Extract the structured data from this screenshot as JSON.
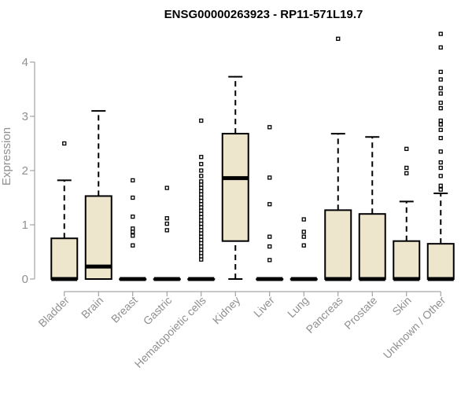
{
  "chart_data": {
    "type": "boxplot",
    "title": "ENSG00000263923 - RP11-571L19.7",
    "xlabel": "",
    "ylabel": "Expression",
    "ylim": [
      0,
      4.6
    ],
    "yticks": [
      0,
      1,
      2,
      3,
      4
    ],
    "grid": false,
    "legend": "none",
    "colors": {
      "box_fill": "#ede6cc",
      "stroke": "#000000",
      "axis": "#909090",
      "text": "#909090",
      "title": "#000000"
    },
    "categories": [
      "Bladder",
      "Brain",
      "Breast",
      "Gastric",
      "Hematopoietic cells",
      "Kidney",
      "Liver",
      "Lung",
      "Pancreas",
      "Prostate",
      "Skin",
      "Unknown / Other"
    ],
    "boxes": [
      {
        "category": "Bladder",
        "min": 0,
        "q1": 0,
        "median": 0,
        "q3": 0.75,
        "max": 1.82,
        "outliers": [
          2.5
        ]
      },
      {
        "category": "Brain",
        "min": 0,
        "q1": 0,
        "median": 0.23,
        "q3": 1.53,
        "max": 3.1,
        "outliers": []
      },
      {
        "category": "Breast",
        "min": 0,
        "q1": 0,
        "median": 0,
        "q3": 0,
        "max": 0,
        "outliers": [
          0.62,
          0.8,
          0.87,
          0.93,
          1.15,
          1.5,
          1.82
        ]
      },
      {
        "category": "Gastric",
        "min": 0,
        "q1": 0,
        "median": 0,
        "q3": 0,
        "max": 0,
        "outliers": [
          0.9,
          1.02,
          1.12,
          1.68
        ]
      },
      {
        "category": "Hematopoietic cells",
        "min": 0,
        "q1": 0,
        "median": 0,
        "q3": 0,
        "max": 0,
        "outliers": [
          0.36,
          0.42,
          0.48,
          0.54,
          0.6,
          0.66,
          0.72,
          0.78,
          0.84,
          0.9,
          0.96,
          1.02,
          1.08,
          1.14,
          1.2,
          1.26,
          1.32,
          1.38,
          1.44,
          1.5,
          1.56,
          1.62,
          1.68,
          1.74,
          1.8,
          1.9,
          2.0,
          2.12,
          2.25,
          2.92
        ]
      },
      {
        "category": "Kidney",
        "min": 0,
        "q1": 0.7,
        "median": 1.86,
        "q3": 2.68,
        "max": 3.73,
        "outliers": []
      },
      {
        "category": "Liver",
        "min": 0,
        "q1": 0,
        "median": 0,
        "q3": 0,
        "max": 0,
        "outliers": [
          0.35,
          0.6,
          0.78,
          1.38,
          1.87,
          2.8
        ]
      },
      {
        "category": "Lung",
        "min": 0,
        "q1": 0,
        "median": 0,
        "q3": 0,
        "max": 0,
        "outliers": [
          0.62,
          0.78,
          0.87,
          1.1
        ]
      },
      {
        "category": "Pancreas",
        "min": 0,
        "q1": 0,
        "median": 0,
        "q3": 1.27,
        "max": 2.68,
        "outliers": [
          4.43
        ]
      },
      {
        "category": "Prostate",
        "min": 0,
        "q1": 0,
        "median": 0,
        "q3": 1.2,
        "max": 2.62,
        "outliers": []
      },
      {
        "category": "Skin",
        "min": 0,
        "q1": 0,
        "median": 0,
        "q3": 0.7,
        "max": 1.43,
        "outliers": [
          1.95,
          2.05,
          2.4
        ]
      },
      {
        "category": "Unknown / Other",
        "min": 0,
        "q1": 0,
        "median": 0,
        "q3": 0.65,
        "max": 1.58,
        "outliers": [
          1.65,
          1.72,
          1.9,
          2.05,
          2.15,
          2.35,
          2.6,
          2.75,
          2.85,
          2.92,
          3.15,
          3.25,
          3.42,
          3.52,
          3.68,
          3.82,
          4.27,
          4.52
        ]
      }
    ]
  }
}
